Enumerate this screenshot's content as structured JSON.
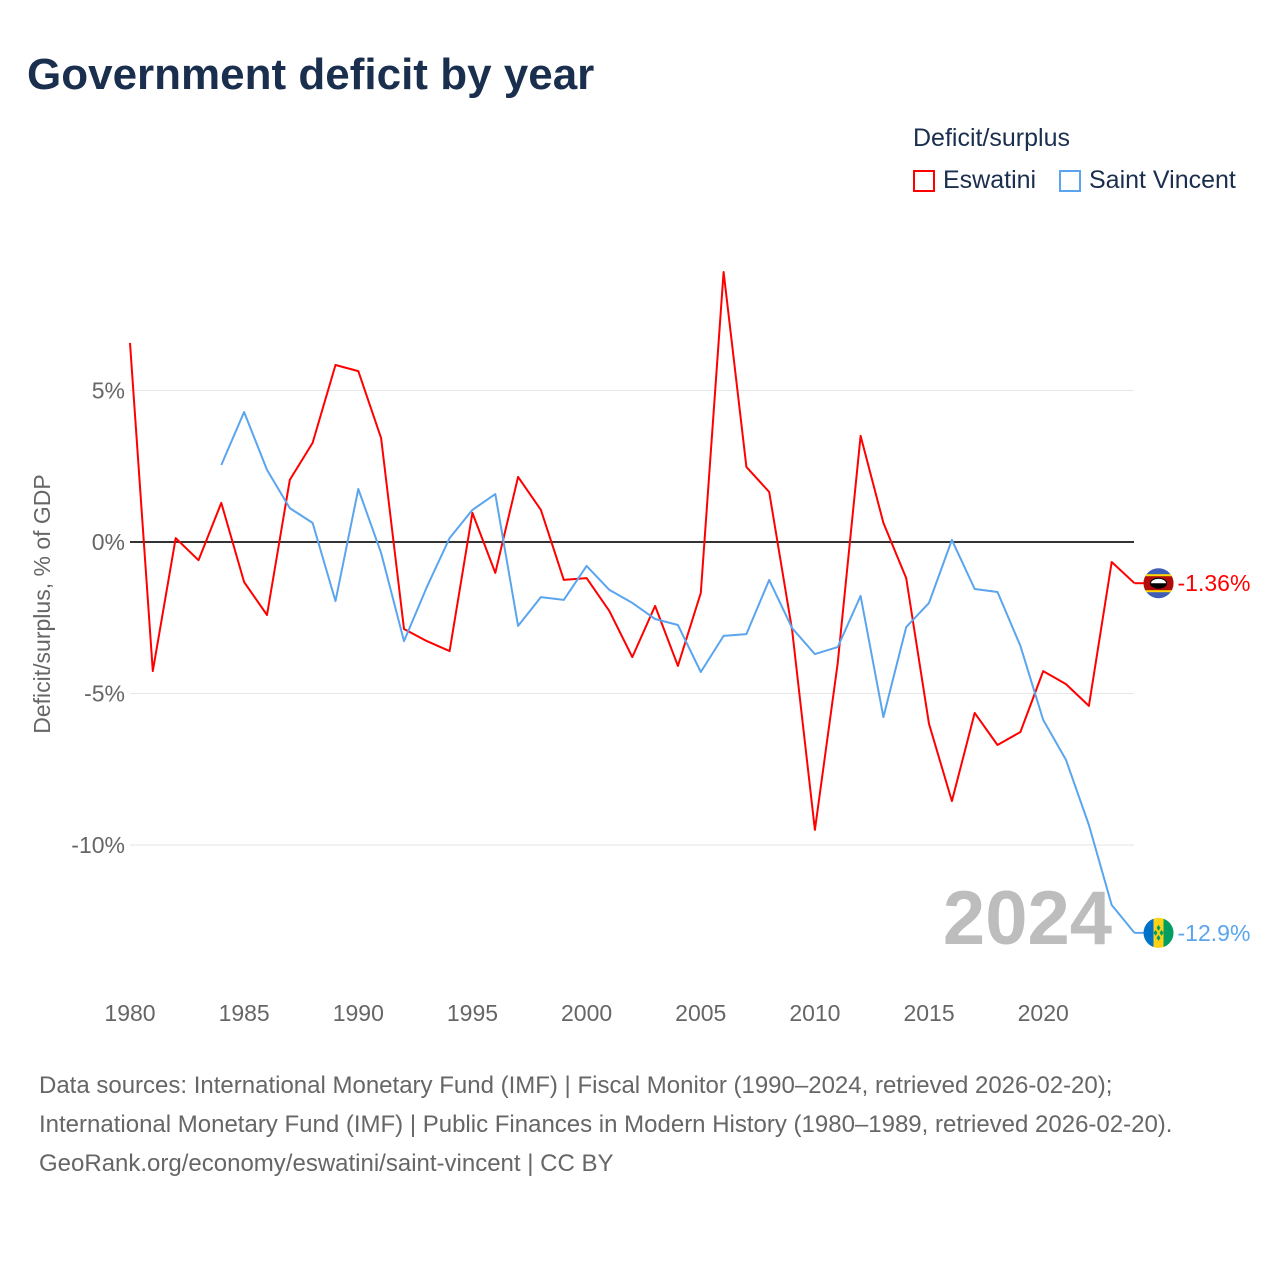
{
  "title": "Government deficit by year",
  "legend": {
    "title": "Deficit/surplus",
    "items": [
      {
        "label": "Eswatini",
        "color": "#ff0000"
      },
      {
        "label": "Saint Vincent",
        "color": "#5aa5ee"
      }
    ]
  },
  "year_label": "2024",
  "footer": {
    "sources": "Data sources: International Monetary Fund (IMF) | Fiscal Monitor (1990–2024, retrieved 2026-02-20); International Monetary Fund (IMF) | Public Finances in Modern History (1980–1989, retrieved 2026-02-20).",
    "credit": "GeoRank.org/economy/eswatini/saint-vincent | CC BY"
  },
  "chart_data": {
    "type": "line",
    "title": "Government deficit by year",
    "xlabel": "",
    "ylabel": "Deficit/surplus, % of GDP",
    "xlim": [
      1980,
      2024
    ],
    "ylim": [
      -13.5,
      9
    ],
    "xticks": [
      1980,
      1985,
      1990,
      1995,
      2000,
      2005,
      2010,
      2015,
      2020
    ],
    "yticks": [
      {
        "v": 5,
        "label": "5%"
      },
      {
        "v": 0,
        "label": "0%"
      },
      {
        "v": -5,
        "label": "-5%"
      },
      {
        "v": -10,
        "label": "-10%"
      }
    ],
    "legend_position": "top-right",
    "series": [
      {
        "name": "Eswatini",
        "color": "#ff0000",
        "end_label": "-1.36%",
        "start": 1980,
        "values": [
          6.57,
          -4.26,
          0.13,
          -0.6,
          1.29,
          -1.32,
          -2.41,
          2.05,
          3.27,
          5.84,
          5.64,
          3.43,
          -2.87,
          -3.27,
          -3.6,
          0.96,
          -1.02,
          2.15,
          1.06,
          -1.25,
          -1.19,
          -2.28,
          -3.8,
          -2.11,
          -4.09,
          -1.68,
          8.91,
          2.48,
          1.65,
          -2.9,
          -9.5,
          -4.0,
          3.5,
          0.63,
          -1.19,
          -6.0,
          -8.55,
          -5.64,
          -6.7,
          -6.27,
          -4.26,
          -4.69,
          -5.41,
          -0.66,
          -1.36
        ]
      },
      {
        "name": "Saint Vincent",
        "color": "#5aa5ee",
        "end_label": "-12.9%",
        "start": 1984,
        "values": [
          2.54,
          4.29,
          2.38,
          1.12,
          0.63,
          -1.95,
          1.75,
          -0.36,
          -3.27,
          -1.49,
          0.13,
          1.06,
          1.58,
          -2.77,
          -1.82,
          -1.91,
          -0.79,
          -1.58,
          -2.01,
          -2.54,
          -2.74,
          -4.29,
          -3.1,
          -3.04,
          -1.25,
          -2.84,
          -3.7,
          -3.47,
          -1.78,
          -5.78,
          -2.81,
          -2.01,
          0.07,
          -1.55,
          -1.65,
          -3.43,
          -5.87,
          -7.19,
          -9.34,
          -11.98,
          -12.9
        ]
      }
    ]
  }
}
